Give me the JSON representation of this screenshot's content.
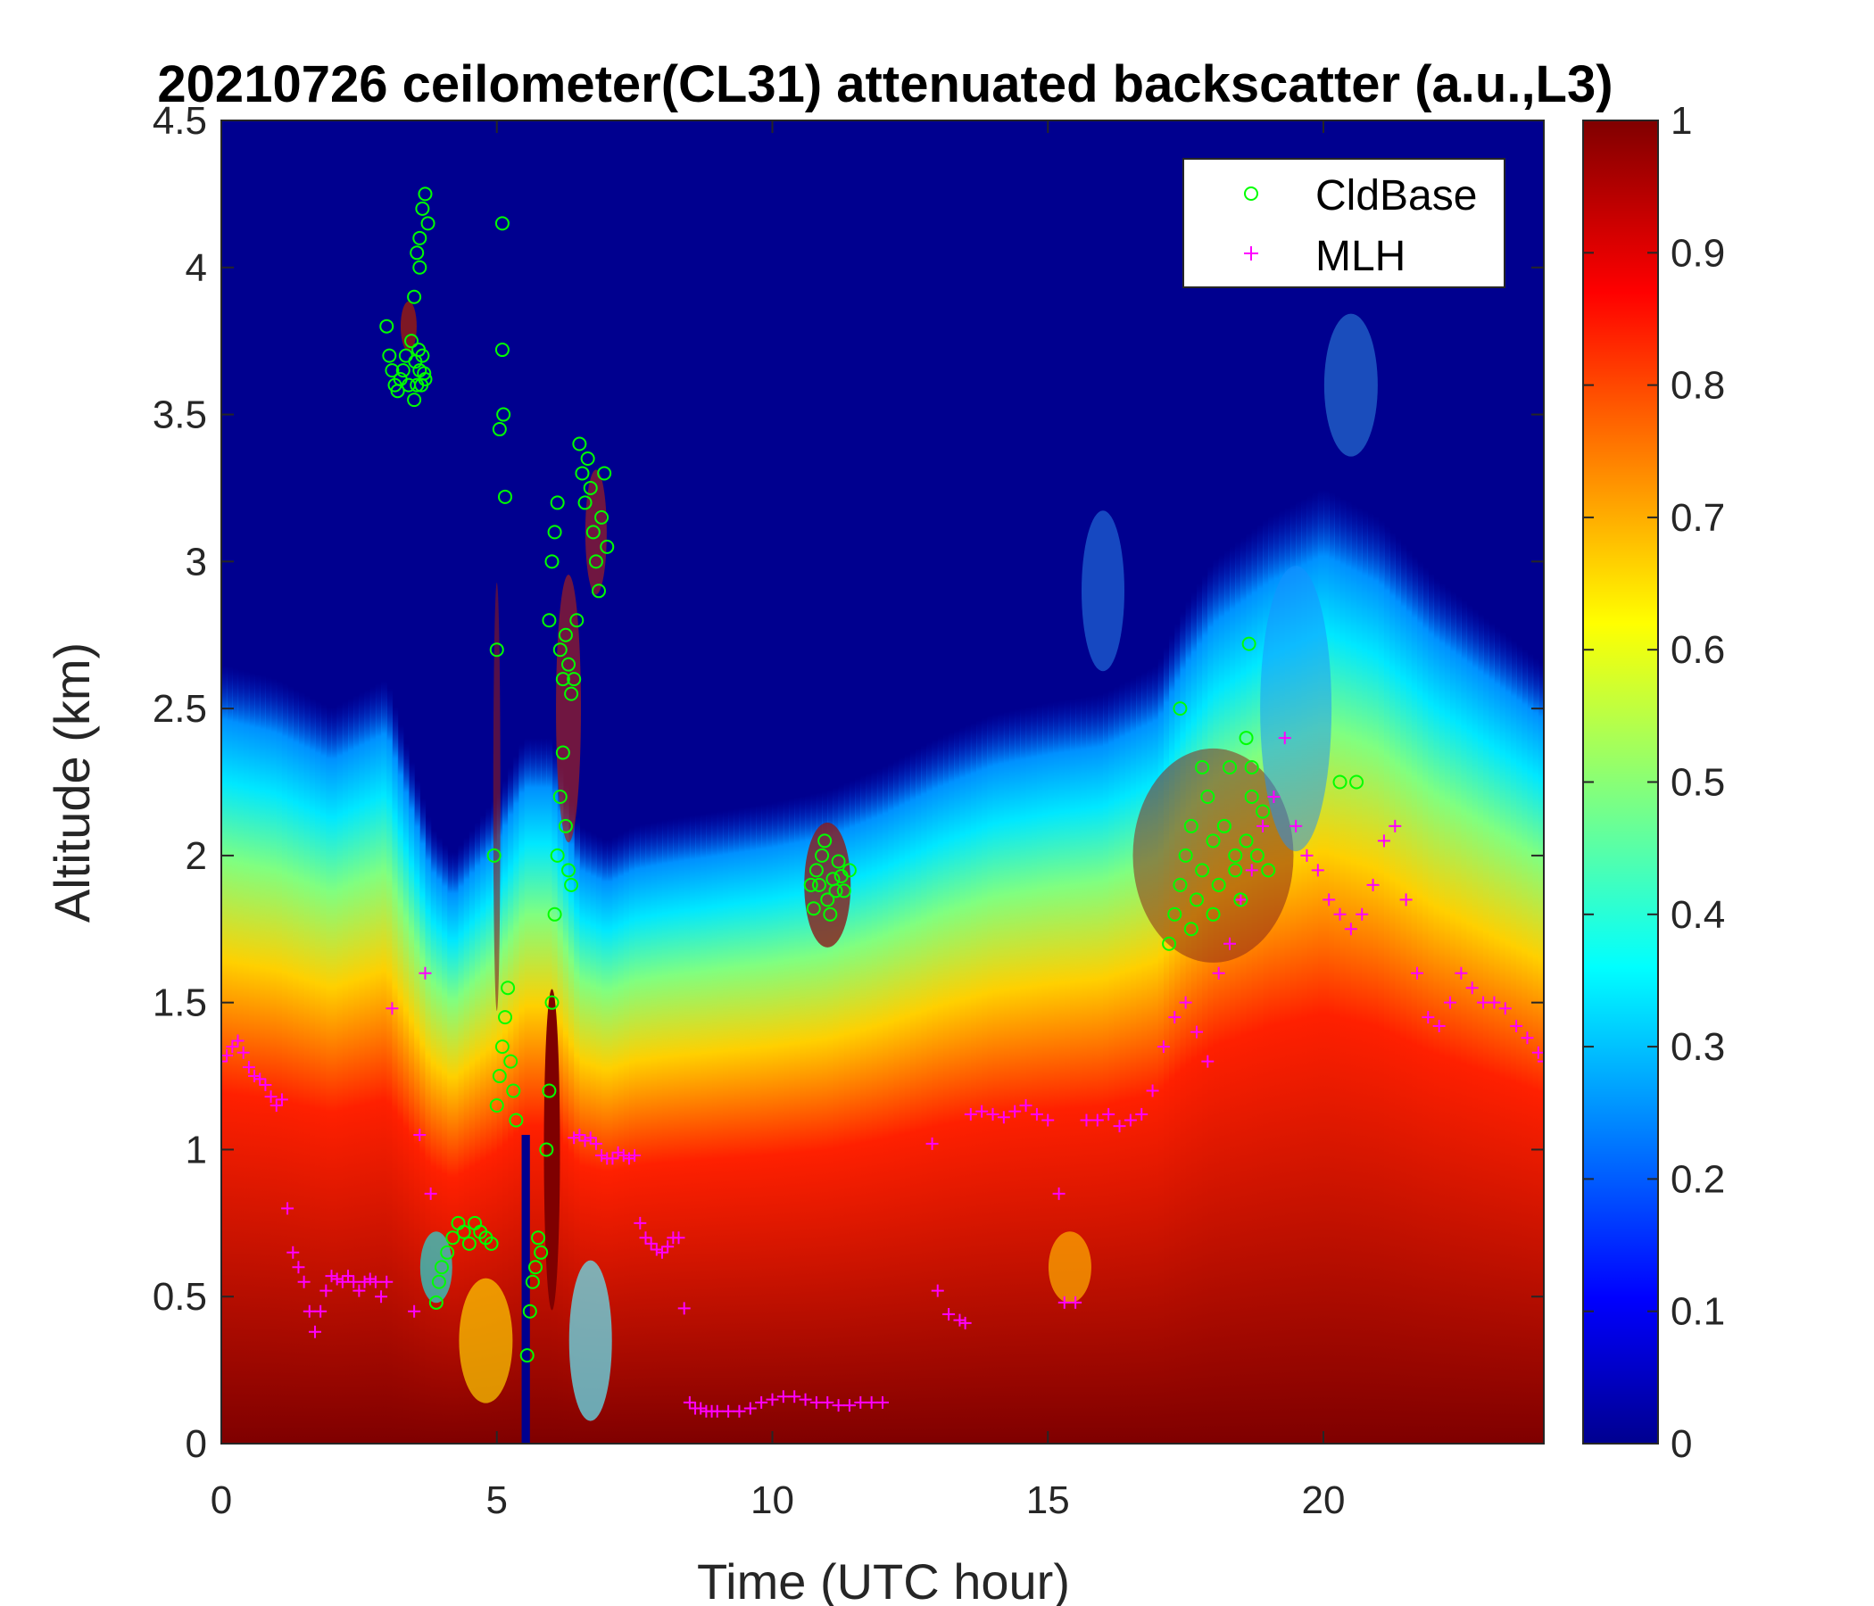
{
  "chart_data": {
    "type": "heatmap",
    "title": "20210726 ceilometer(CL31) attenuated backscatter (a.u.,L3)",
    "xlabel": "Time (UTC hour)",
    "ylabel": "Altitude (km)",
    "xlim": [
      0,
      24
    ],
    "ylim": [
      0,
      4.5
    ],
    "x_ticks": [
      0,
      5,
      10,
      15,
      20
    ],
    "y_ticks": [
      0,
      0.5,
      1,
      1.5,
      2,
      2.5,
      3,
      3.5,
      4,
      4.5
    ],
    "y_tick_labels": [
      "0",
      "0.5",
      "1",
      "1.5",
      "2",
      "2.5",
      "3",
      "3.5",
      "4",
      "4.5"
    ],
    "colorbar": {
      "colormap": "jet",
      "range": [
        0,
        1
      ],
      "ticks": [
        0,
        0.1,
        0.2,
        0.3,
        0.4,
        0.5,
        0.6,
        0.7,
        0.8,
        0.9,
        1
      ],
      "tick_labels": [
        "0",
        "0.1",
        "0.2",
        "0.3",
        "0.4",
        "0.5",
        "0.6",
        "0.7",
        "0.8",
        "0.9",
        "1"
      ]
    },
    "grid": false,
    "legend_position": "top-right",
    "high_backscatter_top_km": {
      "x": [
        0,
        1,
        2,
        3,
        3.8,
        4.2,
        5,
        5.5,
        6,
        6.5,
        7,
        7.5,
        8,
        9,
        10,
        11,
        12,
        13,
        14,
        15,
        16,
        17,
        17.5,
        18,
        19,
        20,
        21,
        22,
        23,
        24
      ],
      "y": [
        1.15,
        1.1,
        1.0,
        1.1,
        0.6,
        0.5,
        0.7,
        0.9,
        0.9,
        0.6,
        0.55,
        0.6,
        0.62,
        0.65,
        0.68,
        0.72,
        0.8,
        0.9,
        0.98,
        1.02,
        1.05,
        1.15,
        1.35,
        1.5,
        1.65,
        1.75,
        1.65,
        1.45,
        1.3,
        1.15
      ]
    },
    "series": [
      {
        "name": "CldBase",
        "marker": "circle",
        "color": "#00ff00",
        "x": [
          3.0,
          3.05,
          3.1,
          3.15,
          3.2,
          3.25,
          3.3,
          3.35,
          3.4,
          3.45,
          3.5,
          3.55,
          3.6,
          3.65,
          3.7,
          3.75,
          3.5,
          3.55,
          3.6,
          3.65,
          3.7,
          3.52,
          3.58,
          3.63,
          3.68,
          3.6,
          3.9,
          3.95,
          4.0,
          4.1,
          4.2,
          4.3,
          4.4,
          4.5,
          4.6,
          4.7,
          4.8,
          4.9,
          5.0,
          5.05,
          5.1,
          5.15,
          5.2,
          5.25,
          5.3,
          5.35,
          4.95,
          5.0,
          5.05,
          5.1,
          5.1,
          5.12,
          5.15,
          5.55,
          5.6,
          5.65,
          5.7,
          5.75,
          5.8,
          5.9,
          5.95,
          6.0,
          6.05,
          6.1,
          6.15,
          6.2,
          6.25,
          6.3,
          6.35,
          5.95,
          6.0,
          6.05,
          6.1,
          6.15,
          6.2,
          6.25,
          6.3,
          6.35,
          6.4,
          6.45,
          6.5,
          6.55,
          6.6,
          6.65,
          6.7,
          6.75,
          6.8,
          6.85,
          6.9,
          6.95,
          7.0,
          10.7,
          10.8,
          10.9,
          11.0,
          11.1,
          11.2,
          11.3,
          11.4,
          10.75,
          10.85,
          10.95,
          11.05,
          11.15,
          11.25,
          17.2,
          17.3,
          17.4,
          17.5,
          17.6,
          17.7,
          17.8,
          17.9,
          18.0,
          18.1,
          18.2,
          18.3,
          18.4,
          18.5,
          18.6,
          18.7,
          18.8,
          18.9,
          19.0,
          17.4,
          17.6,
          17.8,
          18.0,
          18.2,
          18.4,
          18.6,
          18.65,
          18.7,
          20.3,
          20.6
        ],
        "y": [
          3.8,
          3.7,
          3.65,
          3.6,
          3.58,
          3.62,
          3.65,
          3.7,
          3.6,
          3.75,
          3.9,
          4.05,
          4.1,
          4.2,
          4.25,
          4.15,
          3.55,
          3.6,
          3.65,
          3.7,
          3.62,
          3.68,
          3.72,
          3.6,
          3.64,
          4.0,
          0.48,
          0.55,
          0.6,
          0.65,
          0.7,
          0.75,
          0.72,
          0.68,
          0.75,
          0.72,
          0.7,
          0.68,
          1.15,
          1.25,
          1.35,
          1.45,
          1.55,
          1.3,
          1.2,
          1.1,
          2.0,
          2.7,
          3.45,
          3.72,
          4.15,
          3.5,
          3.22,
          0.3,
          0.45,
          0.55,
          0.6,
          0.7,
          0.65,
          1.0,
          1.2,
          1.5,
          1.8,
          2.0,
          2.2,
          2.35,
          2.1,
          1.95,
          1.9,
          2.8,
          3.0,
          3.1,
          3.2,
          2.7,
          2.6,
          2.75,
          2.65,
          2.55,
          2.6,
          2.8,
          3.4,
          3.3,
          3.2,
          3.35,
          3.25,
          3.1,
          3.0,
          2.9,
          3.15,
          3.3,
          3.05,
          1.9,
          1.95,
          2.0,
          1.85,
          1.92,
          1.98,
          1.88,
          1.95,
          1.82,
          1.9,
          2.05,
          1.8,
          1.88,
          1.93,
          1.7,
          1.8,
          1.9,
          2.0,
          2.1,
          1.85,
          1.95,
          2.2,
          2.05,
          1.9,
          2.1,
          2.3,
          2.0,
          1.85,
          2.4,
          2.2,
          2.0,
          2.15,
          1.95,
          2.5,
          1.75,
          2.3,
          1.8,
          2.1,
          1.95,
          2.05,
          2.72,
          2.3,
          2.25,
          2.25
        ]
      },
      {
        "name": "MLH",
        "marker": "plus",
        "color": "#ff00ff",
        "x": [
          0.0,
          0.1,
          0.2,
          0.3,
          0.4,
          0.5,
          0.6,
          0.7,
          0.8,
          0.9,
          1.0,
          1.1,
          1.2,
          1.3,
          1.4,
          1.5,
          1.6,
          1.7,
          1.8,
          1.9,
          2.0,
          2.1,
          2.2,
          2.3,
          2.4,
          2.5,
          2.6,
          2.7,
          2.8,
          2.9,
          3.0,
          3.1,
          3.5,
          3.6,
          3.7,
          3.8,
          6.4,
          6.5,
          6.6,
          6.7,
          6.8,
          6.9,
          7.0,
          7.1,
          7.2,
          7.3,
          7.4,
          7.5,
          7.6,
          7.7,
          7.8,
          7.9,
          8.0,
          8.1,
          8.2,
          8.3,
          8.4,
          8.5,
          8.6,
          8.7,
          8.8,
          8.9,
          9.0,
          9.2,
          9.4,
          9.6,
          9.8,
          10.0,
          10.2,
          10.4,
          10.6,
          10.8,
          11.0,
          11.2,
          11.4,
          11.6,
          11.8,
          12.0,
          12.9,
          13.0,
          13.2,
          13.4,
          13.5,
          13.6,
          13.8,
          14.0,
          14.2,
          14.4,
          14.6,
          14.8,
          15.0,
          15.2,
          15.3,
          15.5,
          15.7,
          15.9,
          16.1,
          16.3,
          16.5,
          16.7,
          16.9,
          17.1,
          17.3,
          17.5,
          17.7,
          17.9,
          18.1,
          18.3,
          18.5,
          18.7,
          18.9,
          19.1,
          19.3,
          19.5,
          19.7,
          19.9,
          20.1,
          20.3,
          20.5,
          20.7,
          20.9,
          21.1,
          21.3,
          21.5,
          21.7,
          21.9,
          22.1,
          22.3,
          22.5,
          22.7,
          22.9,
          23.1,
          23.3,
          23.5,
          23.7,
          23.9,
          24.0
        ],
        "y": [
          1.3,
          1.32,
          1.35,
          1.37,
          1.33,
          1.28,
          1.25,
          1.24,
          1.22,
          1.18,
          1.15,
          1.17,
          0.8,
          0.65,
          0.6,
          0.55,
          0.45,
          0.38,
          0.45,
          0.52,
          0.57,
          0.56,
          0.55,
          0.57,
          0.55,
          0.52,
          0.55,
          0.56,
          0.55,
          0.5,
          0.55,
          1.48,
          0.45,
          1.05,
          1.6,
          0.85,
          1.04,
          1.05,
          1.03,
          1.04,
          1.02,
          0.98,
          0.97,
          0.97,
          0.99,
          0.98,
          0.97,
          0.98,
          0.75,
          0.7,
          0.68,
          0.66,
          0.65,
          0.67,
          0.7,
          0.7,
          0.46,
          0.14,
          0.12,
          0.12,
          0.11,
          0.11,
          0.11,
          0.11,
          0.11,
          0.12,
          0.14,
          0.15,
          0.16,
          0.16,
          0.15,
          0.14,
          0.14,
          0.13,
          0.13,
          0.14,
          0.14,
          0.14,
          1.02,
          0.52,
          0.44,
          0.42,
          0.41,
          1.12,
          1.13,
          1.12,
          1.11,
          1.13,
          1.15,
          1.12,
          1.1,
          0.85,
          0.48,
          0.48,
          1.1,
          1.1,
          1.12,
          1.08,
          1.1,
          1.12,
          1.2,
          1.35,
          1.45,
          1.5,
          1.4,
          1.3,
          1.6,
          1.7,
          1.85,
          1.95,
          2.1,
          2.2,
          2.4,
          2.1,
          2.0,
          1.95,
          1.85,
          1.8,
          1.75,
          1.8,
          1.9,
          2.05,
          2.1,
          1.85,
          1.6,
          1.45,
          1.42,
          1.5,
          1.6,
          1.55,
          1.5,
          1.5,
          1.48,
          1.42,
          1.38,
          1.33,
          1.3
        ]
      }
    ]
  }
}
